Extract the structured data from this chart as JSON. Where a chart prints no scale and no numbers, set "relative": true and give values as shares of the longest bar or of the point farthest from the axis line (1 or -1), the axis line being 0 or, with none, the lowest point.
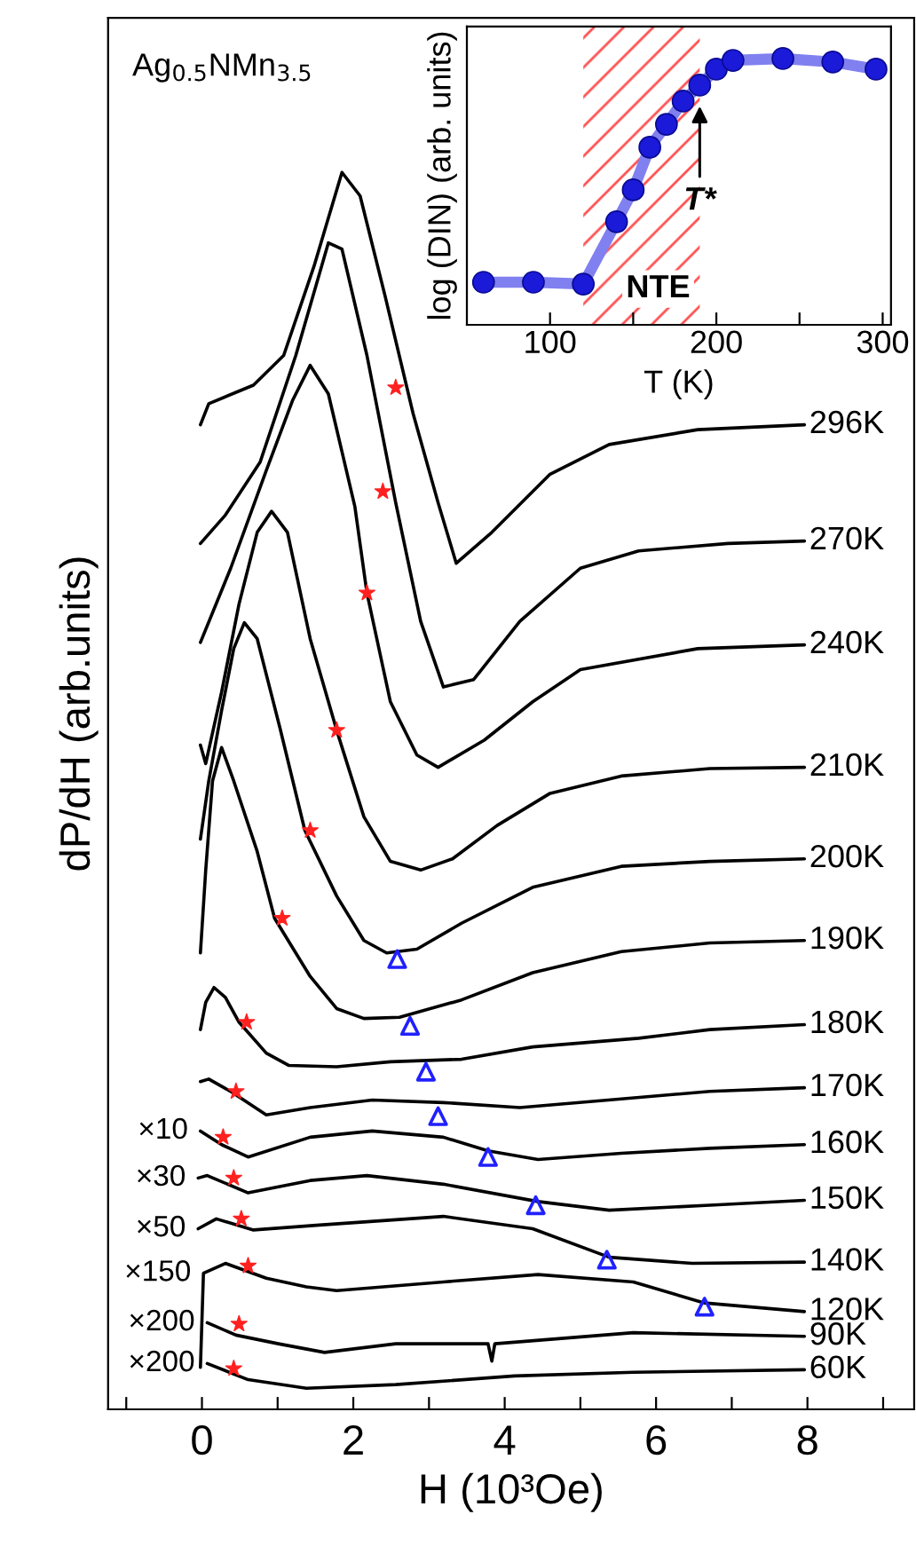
{
  "chart_data": [
    {
      "type": "line",
      "relative": true,
      "xlabel": "H (10³Oe)",
      "ylabel": "dP/dH (arb.units)",
      "xlim": [
        -1.24,
        9.41
      ],
      "xticks": [
        {
          "value": -1,
          "label": null
        },
        0,
        {
          "value": 1,
          "label": null
        },
        2,
        {
          "value": 3,
          "label": null
        },
        4,
        {
          "value": 5,
          "label": null
        },
        6,
        {
          "value": 7,
          "label": null
        },
        8,
        {
          "value": 9,
          "label": null
        }
      ],
      "annotations": [
        "Ag$_{0.5}$NMn$_{3.5}$",
        {
          "text": "×10",
          "x": -0.02,
          "y": 0.225
        },
        {
          "text": "×30",
          "x": -0.05,
          "y": 0.187
        },
        {
          "text": "×50",
          "x": -0.05,
          "y": 0.146
        },
        {
          "text": "×150",
          "x": 0.02,
          "y": 0.11
        },
        {
          "text": "×200",
          "x": 0.07,
          "y": 0.07
        },
        {
          "text": "×200",
          "x": 0.07,
          "y": 0.037
        }
      ],
      "series": [
        {
          "name": "296K",
          "color": "#000000",
          "x": [
            -0.02,
            0.09,
            0.68,
            1.08,
            1.48,
            1.85,
            2.09,
            2.42,
            2.79,
            3.12,
            3.36,
            3.83,
            4.6,
            5.38,
            6.55,
            7.96
          ],
          "values": [
            0.796,
            0.813,
            0.828,
            0.852,
            0.924,
            1.0,
            0.981,
            0.9,
            0.805,
            0.733,
            0.684,
            0.709,
            0.756,
            0.78,
            0.792,
            0.796
          ]
        },
        {
          "name": "270K",
          "color": "#000000",
          "x": [
            -0.02,
            0.31,
            0.77,
            1.24,
            1.67,
            1.85,
            2.18,
            2.56,
            2.89,
            3.19,
            3.59,
            4.2,
            5.0,
            5.77,
            6.95,
            7.96
          ],
          "values": [
            0.7,
            0.723,
            0.766,
            0.852,
            0.943,
            0.938,
            0.852,
            0.733,
            0.637,
            0.584,
            0.59,
            0.637,
            0.68,
            0.694,
            0.7,
            0.702
          ]
        },
        {
          "name": "240K",
          "color": "#000000",
          "x": [
            -0.02,
            0.38,
            0.85,
            1.2,
            1.43,
            1.67,
            2.02,
            2.18,
            2.49,
            2.84,
            3.12,
            3.73,
            4.37,
            5.0,
            6.55,
            7.96
          ],
          "values": [
            0.62,
            0.68,
            0.759,
            0.816,
            0.844,
            0.821,
            0.73,
            0.66,
            0.572,
            0.529,
            0.519,
            0.541,
            0.572,
            0.598,
            0.615,
            0.618
          ]
        },
        {
          "name": "210K",
          "color": "#000000",
          "x": [
            -0.02,
            0.05,
            0.26,
            0.49,
            0.73,
            0.92,
            1.13,
            1.43,
            1.78,
            2.14,
            2.49,
            2.89,
            3.31,
            3.9,
            4.6,
            5.54,
            6.71,
            7.96
          ],
          "values": [
            0.537,
            0.522,
            0.58,
            0.651,
            0.709,
            0.726,
            0.709,
            0.623,
            0.549,
            0.479,
            0.443,
            0.436,
            0.445,
            0.472,
            0.498,
            0.512,
            0.518,
            0.519
          ]
        },
        {
          "name": "200K",
          "color": "#000000",
          "x": [
            -0.02,
            0.09,
            0.26,
            0.42,
            0.56,
            0.73,
            1.03,
            1.36,
            1.78,
            2.14,
            2.44,
            2.84,
            3.43,
            4.37,
            5.54,
            6.71,
            7.96
          ],
          "values": [
            0.461,
            0.508,
            0.565,
            0.615,
            0.636,
            0.623,
            0.551,
            0.468,
            0.415,
            0.379,
            0.369,
            0.372,
            0.393,
            0.422,
            0.439,
            0.443,
            0.445
          ]
        },
        {
          "name": "190K",
          "color": "#000000",
          "x": [
            -0.02,
            0.05,
            0.14,
            0.26,
            0.42,
            0.73,
            0.96,
            1.43,
            1.78,
            2.14,
            2.61,
            3.43,
            4.37,
            5.54,
            6.71,
            7.96
          ],
          "values": [
            0.369,
            0.436,
            0.508,
            0.535,
            0.508,
            0.451,
            0.397,
            0.35,
            0.324,
            0.316,
            0.317,
            0.331,
            0.353,
            0.37,
            0.377,
            0.379
          ]
        },
        {
          "name": "180K",
          "color": "#000000",
          "x": [
            -0.02,
            0.05,
            0.16,
            0.31,
            0.49,
            0.85,
            1.15,
            1.78,
            2.49,
            3.43,
            4.37,
            5.77,
            6.71,
            7.96
          ],
          "values": [
            0.307,
            0.329,
            0.341,
            0.333,
            0.313,
            0.288,
            0.278,
            0.277,
            0.281,
            0.283,
            0.293,
            0.3,
            0.307,
            0.311
          ]
        },
        {
          "name": "170K",
          "color": "#000000",
          "x": [
            -0.02,
            0.09,
            0.38,
            0.85,
            1.43,
            2.25,
            3.19,
            4.2,
            5.54,
            6.71,
            7.96
          ],
          "values": [
            0.265,
            0.267,
            0.257,
            0.238,
            0.244,
            0.25,
            0.248,
            0.244,
            0.251,
            0.257,
            0.26
          ]
        },
        {
          "name": "160K",
          "color": "#000000",
          "x": [
            -0.02,
            0.26,
            0.61,
            1.43,
            2.25,
            3.19,
            3.78,
            4.44,
            5.54,
            6.71,
            7.96
          ],
          "values": [
            0.225,
            0.214,
            0.204,
            0.22,
            0.225,
            0.22,
            0.209,
            0.202,
            0.207,
            0.211,
            0.214
          ]
        },
        {
          "name": "150K",
          "color": "#000000",
          "x": [
            -0.05,
            0.07,
            0.61,
            1.43,
            2.18,
            3.19,
            4.44,
            5.38,
            6.71,
            7.96
          ],
          "values": [
            0.187,
            0.189,
            0.175,
            0.185,
            0.189,
            0.182,
            0.168,
            0.161,
            0.165,
            0.169
          ]
        },
        {
          "name": "140K",
          "color": "#000000",
          "x": [
            -0.05,
            0.19,
            0.68,
            1.55,
            3.19,
            4.37,
            5.38,
            6.48,
            7.96
          ],
          "values": [
            0.146,
            0.154,
            0.145,
            0.149,
            0.156,
            0.146,
            0.123,
            0.118,
            0.119
          ]
        },
        {
          "name": "120K",
          "color": "#000000",
          "x": [
            -0.02,
            0.02,
            0.31,
            0.85,
            1.38,
            1.78,
            3.19,
            4.44,
            5.7,
            6.64,
            7.96
          ],
          "values": [
            0.034,
            0.11,
            0.118,
            0.106,
            0.099,
            0.096,
            0.103,
            0.109,
            0.103,
            0.086,
            0.079
          ]
        },
        {
          "name": "90K",
          "color": "#000000",
          "x": [
            0.07,
            0.45,
            1.01,
            1.62,
            2.56,
            3.78,
            3.83,
            3.87,
            5.7,
            7.96
          ],
          "values": [
            0.07,
            0.06,
            0.053,
            0.046,
            0.053,
            0.053,
            0.039,
            0.053,
            0.062,
            0.059
          ]
        },
        {
          "name": "60K",
          "color": "#000000",
          "x": [
            0.07,
            0.61,
            1.38,
            2.56,
            4.13,
            5.7,
            7.96
          ],
          "values": [
            0.037,
            0.024,
            0.017,
            0.02,
            0.027,
            0.03,
            0.032
          ]
        },
        {
          "type": "scatter",
          "marker": "star",
          "color": "#ff2020",
          "x": [
            2.56,
            2.39,
            2.18,
            1.78,
            1.43,
            1.06,
            0.59,
            0.45,
            0.28,
            0.42,
            0.52,
            0.61,
            0.49,
            0.42
          ],
          "values": [
            0.826,
            0.742,
            0.66,
            0.549,
            0.468,
            0.397,
            0.313,
            0.257,
            0.22,
            0.187,
            0.154,
            0.116,
            0.069,
            0.033
          ]
        },
        {
          "type": "scatter",
          "marker": "triangle",
          "color": "#2020ff",
          "x": [
            2.58,
            2.75,
            2.96,
            3.12,
            3.78,
            4.41,
            5.35,
            6.64
          ],
          "values": [
            0.364,
            0.31,
            0.273,
            0.237,
            0.204,
            0.165,
            0.121,
            0.083
          ]
        }
      ]
    },
    {
      "type": "line",
      "relative": true,
      "xlabel": "T (K)",
      "ylabel": "log (DIN) (arb. units)",
      "xlim": [
        50,
        305
      ],
      "xticks": [
        100,
        {
          "value": 150,
          "label": null
        },
        200,
        {
          "value": 250,
          "label": null
        },
        300
      ],
      "x": [
        60,
        90,
        120,
        140,
        150,
        160,
        170,
        180,
        190,
        200,
        210,
        240,
        270,
        296
      ],
      "bands": [
        {
          "axis": "x",
          "from": 120,
          "to": 190,
          "label": "NTE",
          "color": "#ff5050"
        }
      ],
      "annotations": [
        {
          "text": "T*",
          "x": 190,
          "y": 0.84
        }
      ],
      "series": [
        {
          "color": "#8080f0",
          "values": [
            0.16,
            0.16,
            0.153,
            0.387,
            0.507,
            0.667,
            0.753,
            0.84,
            0.9,
            0.96,
            0.993,
            1.0,
            0.987,
            0.96
          ]
        },
        {
          "type": "scatter",
          "marker": "circle",
          "color": "#1a1ad8",
          "values": [
            0.16,
            0.16,
            0.153,
            0.387,
            0.507,
            0.667,
            0.753,
            0.84,
            0.9,
            0.96,
            0.993,
            1.0,
            0.987,
            0.96
          ]
        }
      ]
    }
  ]
}
